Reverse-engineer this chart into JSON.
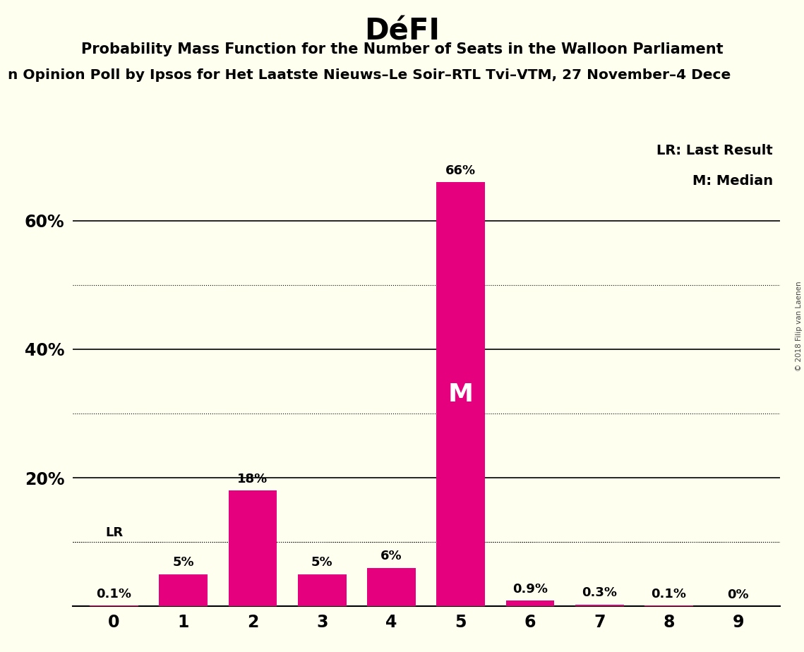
{
  "title": "DéFI",
  "subtitle": "Probability Mass Function for the Number of Seats in the Walloon Parliament",
  "subtitle2": "n Opinion Poll by Ipsos for Het Laatste Nieuws–Le Soir–RTL Tvi–VTM, 27 November–4 Dece",
  "watermark": "© 2018 Filip van Laenen",
  "categories": [
    0,
    1,
    2,
    3,
    4,
    5,
    6,
    7,
    8,
    9
  ],
  "values": [
    0.1,
    5.0,
    18.0,
    5.0,
    6.0,
    66.0,
    0.9,
    0.3,
    0.1,
    0.0
  ],
  "bar_color": "#E5007D",
  "background_color": "#FFFFF0",
  "bar_labels": [
    "0.1%",
    "5%",
    "18%",
    "5%",
    "6%",
    "66%",
    "0.9%",
    "0.3%",
    "0.1%",
    "0%"
  ],
  "median_bar": 5,
  "median_label": "M",
  "lr_bar": 0,
  "lr_label": "LR",
  "legend_lr": "LR: Last Result",
  "legend_m": "M: Median",
  "yticks": [
    0,
    20,
    40,
    60
  ],
  "ytick_labels": [
    "",
    "20%",
    "40%",
    "60%"
  ],
  "solid_grid_lines": [
    20,
    40,
    60
  ],
  "dotted_grid_lines": [
    10,
    30,
    50
  ],
  "lr_dotted_line": 10,
  "ylim": [
    0,
    73
  ]
}
